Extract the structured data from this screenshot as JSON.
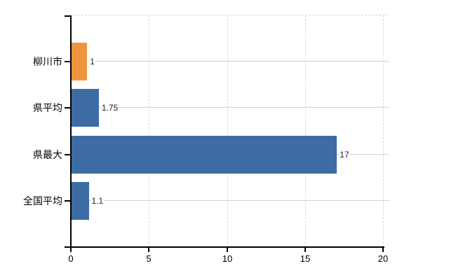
{
  "chart_data": {
    "type": "bar",
    "orientation": "horizontal",
    "title": "",
    "xlabel": "",
    "ylabel": "",
    "categories": [
      "柳川市",
      "県平均",
      "県最大",
      "全国平均"
    ],
    "values": [
      1,
      1.75,
      17,
      1.1
    ],
    "value_labels": [
      "1",
      "1.75",
      "17",
      "1.1"
    ],
    "bar_colors": [
      "#EF9540",
      "#3D6CA5",
      "#3D6CA5",
      "#3D6CA5"
    ],
    "x_ticks": [
      "0",
      "5",
      "10",
      "15",
      "20"
    ],
    "xlim": [
      0,
      20
    ],
    "legend": "none",
    "grid": {
      "vertical": "dashed",
      "horizontal": "solid-at-row-centers"
    }
  },
  "colors": {
    "highlight_bar": "#EF9540",
    "default_bar": "#3D6CA5",
    "grid_solid": "#D4D4D4",
    "grid_dashed": "#D8D8D8",
    "axis": "#000000",
    "text": "#222222",
    "background": "#FFFFFF"
  }
}
